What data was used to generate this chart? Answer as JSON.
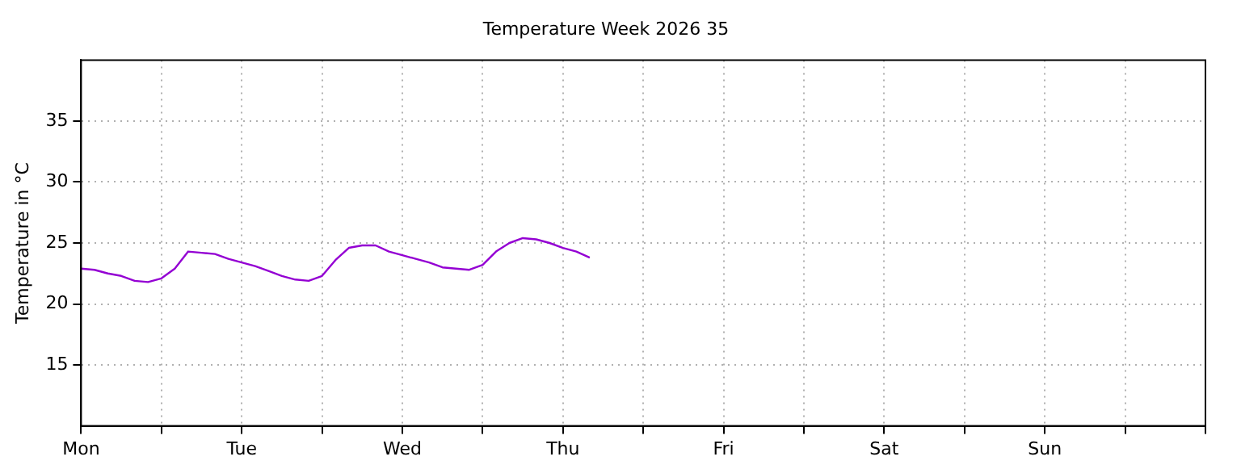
{
  "chart_data": {
    "type": "line",
    "title": "Temperature Week 2026 35",
    "ylabel": "Temperature in °C",
    "categories": [
      "Mon",
      null,
      null,
      null,
      null,
      null,
      null,
      null,
      null,
      null,
      null,
      null,
      "Tue",
      null,
      null,
      null,
      null,
      null,
      null,
      null,
      null,
      null,
      null,
      null,
      "Wed",
      null,
      null,
      null,
      null,
      null,
      null,
      null,
      null,
      null,
      null,
      null,
      "Thu",
      null,
      null,
      null,
      null,
      null,
      null,
      null,
      null,
      null,
      null,
      null,
      "Fri",
      null,
      null,
      null,
      null,
      null,
      null,
      null,
      null,
      null,
      null,
      null,
      "Sat",
      null,
      null,
      null,
      null,
      null,
      null,
      null,
      null,
      null,
      null,
      null,
      "Sun",
      null,
      null,
      null,
      null,
      null,
      null,
      null,
      null,
      null,
      null,
      null,
      null
    ],
    "series": [
      {
        "color": "#9400d3",
        "values": [
          22.9,
          22.8,
          22.5,
          22.3,
          21.9,
          21.8,
          22.1,
          22.9,
          24.3,
          24.2,
          24.1,
          23.7,
          23.4,
          23.1,
          22.7,
          22.3,
          22.0,
          21.9,
          22.3,
          23.6,
          24.6,
          24.8,
          24.8,
          24.3,
          24.0,
          23.7,
          23.4,
          23.0,
          22.9,
          22.8,
          23.2,
          24.3,
          25.0,
          25.4,
          25.3,
          25.0,
          24.6,
          24.3,
          23.8,
          null,
          null,
          null,
          null,
          null,
          null,
          null,
          null,
          null,
          null,
          null,
          null,
          null,
          null,
          null,
          null,
          null,
          null,
          null,
          null,
          null,
          null,
          null,
          null,
          null,
          null,
          null,
          null,
          null,
          null,
          null,
          null,
          null,
          null,
          null,
          null,
          null,
          null,
          null,
          null,
          null,
          null,
          null,
          null,
          null,
          null
        ]
      }
    ],
    "ylim": [
      10,
      40
    ],
    "yticks": [
      15,
      20,
      25,
      30,
      35
    ],
    "grid": true,
    "legend": false,
    "marker": "none",
    "line_style": "solid"
  }
}
